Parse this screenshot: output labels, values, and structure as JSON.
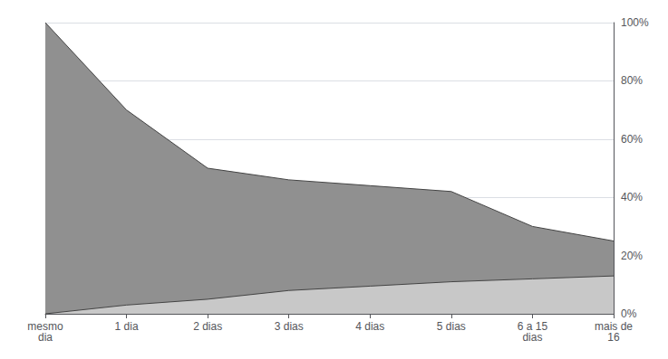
{
  "chart_data": {
    "type": "area",
    "categories": [
      "mesmo\ndia",
      "1 dia",
      "2 dias",
      "3 dias",
      "4 dias",
      "5 dias",
      "6 a 15\ndias",
      "mais de\n16"
    ],
    "series": [
      {
        "color": "#909090",
        "values": [
          1.0,
          0.7,
          0.5,
          0.46,
          0.44,
          0.42,
          0.3,
          0.25
        ]
      },
      {
        "color": "#c8c8c8",
        "values": [
          0.0,
          0.03,
          0.05,
          0.08,
          0.095,
          0.11,
          0.12,
          0.13
        ]
      }
    ],
    "ylim": [
      0,
      1
    ],
    "yticks": [
      {
        "value": 0.0,
        "label": "0%"
      },
      {
        "value": 0.2,
        "label": "20%"
      },
      {
        "value": 0.4,
        "label": "40%"
      },
      {
        "value": 0.6,
        "label": "60%"
      },
      {
        "value": 0.8,
        "label": "80%"
      },
      {
        "value": 1.0,
        "label": "100%"
      }
    ],
    "grid": true
  }
}
